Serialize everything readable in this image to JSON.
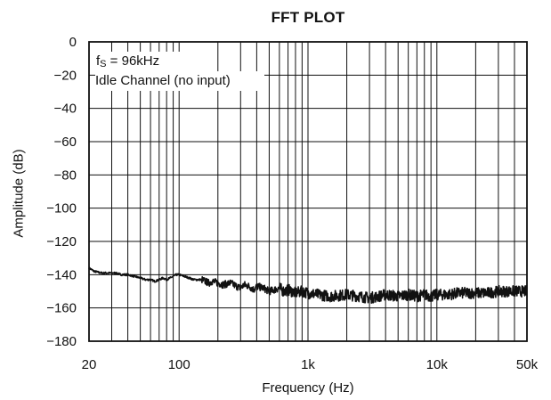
{
  "chart_data": {
    "type": "line",
    "title": "FFT PLOT",
    "xlabel": "Frequency (Hz)",
    "ylabel": "Amplitude (dB)",
    "xscale": "log",
    "xlim": [
      20,
      50000
    ],
    "ylim": [
      -180,
      0
    ],
    "grid": true,
    "xtick_labels": [
      {
        "value": 20,
        "label": "20"
      },
      {
        "value": 100,
        "label": "100"
      },
      {
        "value": 1000,
        "label": "1k"
      },
      {
        "value": 10000,
        "label": "10k"
      },
      {
        "value": 50000,
        "label": "50k"
      }
    ],
    "yticks": [
      0,
      -20,
      -40,
      -60,
      -80,
      -100,
      -120,
      -140,
      -160,
      -180
    ],
    "ytick_labels": [
      "0",
      "−20",
      "−40",
      "−60",
      "−80",
      "−100",
      "−120",
      "−140",
      "−160",
      "−180"
    ],
    "annotations": {
      "fs_prefix": "f",
      "fs_sub": "S",
      "fs_rest": " = 96kHz",
      "note": "Idle Channel (no input)"
    },
    "series": [
      {
        "x": [
          20,
          22,
          25,
          28,
          32,
          36,
          40,
          45,
          50,
          55,
          60,
          65,
          70,
          75,
          80,
          85,
          90,
          95,
          100,
          110,
          120,
          130,
          140,
          150,
          160,
          170,
          180,
          200,
          220,
          250,
          280,
          300,
          320,
          350,
          380,
          400,
          450,
          500,
          550,
          600,
          650,
          700,
          750,
          800,
          900,
          1000,
          1200,
          1500,
          2000,
          2500,
          3000,
          3500,
          4000,
          5000,
          6000,
          7000,
          8000,
          9000,
          10000,
          12000,
          15000,
          20000,
          25000,
          30000,
          35000,
          40000,
          45000,
          50000
        ],
        "y": [
          -136,
          -138,
          -139,
          -139,
          -139,
          -140,
          -140,
          -141,
          -142,
          -143,
          -143,
          -144,
          -143,
          -142,
          -143,
          -142,
          -141,
          -140,
          -140,
          -141,
          -142,
          -143,
          -143,
          -143,
          -144,
          -145,
          -144,
          -145,
          -146,
          -145,
          -147,
          -148,
          -146,
          -147,
          -149,
          -147,
          -148,
          -150,
          -149,
          -148,
          -150,
          -149,
          -150,
          -151,
          -150,
          -151,
          -152,
          -153,
          -152,
          -153,
          -154,
          -153,
          -152,
          -153,
          -152,
          -153,
          -152,
          -153,
          -152,
          -152,
          -151,
          -151,
          -151,
          -150,
          -150,
          -150,
          -150,
          -150
        ]
      }
    ]
  }
}
